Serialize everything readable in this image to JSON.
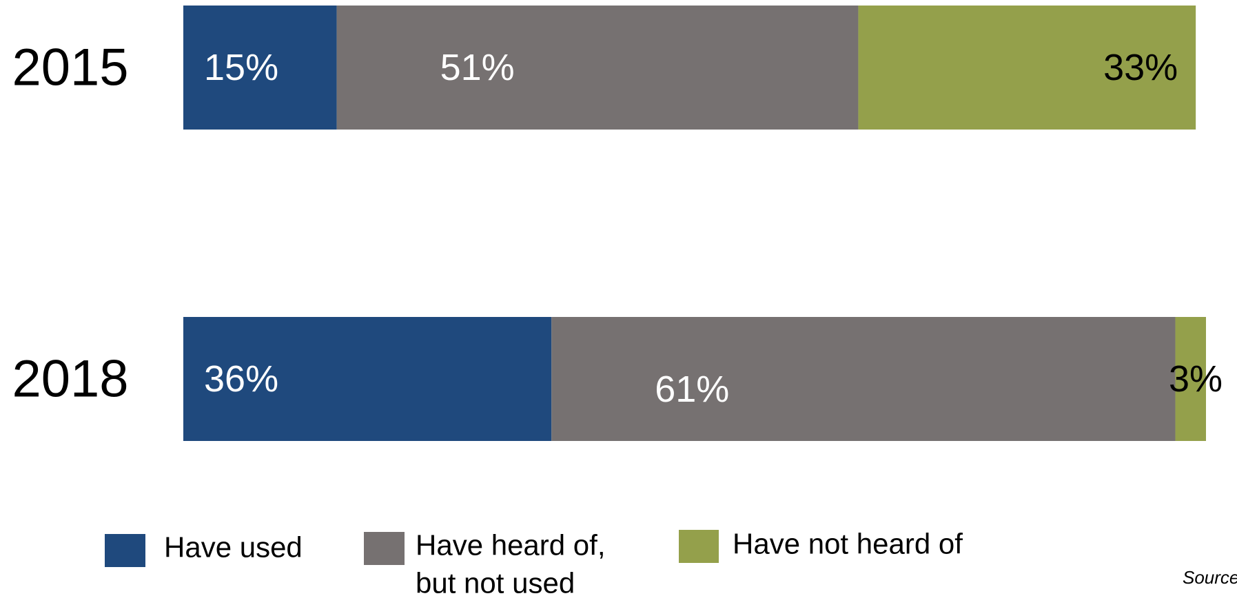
{
  "chart_data": {
    "type": "bar",
    "orientation": "horizontal",
    "stacked": true,
    "categories": [
      "2015",
      "2018"
    ],
    "series": [
      {
        "name": "Have used",
        "values": [
          15,
          36
        ],
        "labels": [
          "15%",
          "36%"
        ],
        "color": "#1F497D",
        "label_color": "#ffffff"
      },
      {
        "name": "Have heard of, but not used",
        "values": [
          51,
          61
        ],
        "labels": [
          "51%",
          "61%"
        ],
        "color": "#767171",
        "label_color": "#ffffff"
      },
      {
        "name": "Have not heard of",
        "values": [
          33,
          3
        ],
        "labels": [
          "33%",
          "3%"
        ],
        "color": "#94A04B",
        "label_color": "#000000"
      }
    ],
    "xlim": [
      0,
      100
    ],
    "grid": false,
    "legend": "bottom",
    "legend_lines": [
      [
        "Have used"
      ],
      [
        "Have heard of,",
        "but not used"
      ],
      [
        "Have not heard of"
      ]
    ],
    "source_text": "Source"
  }
}
